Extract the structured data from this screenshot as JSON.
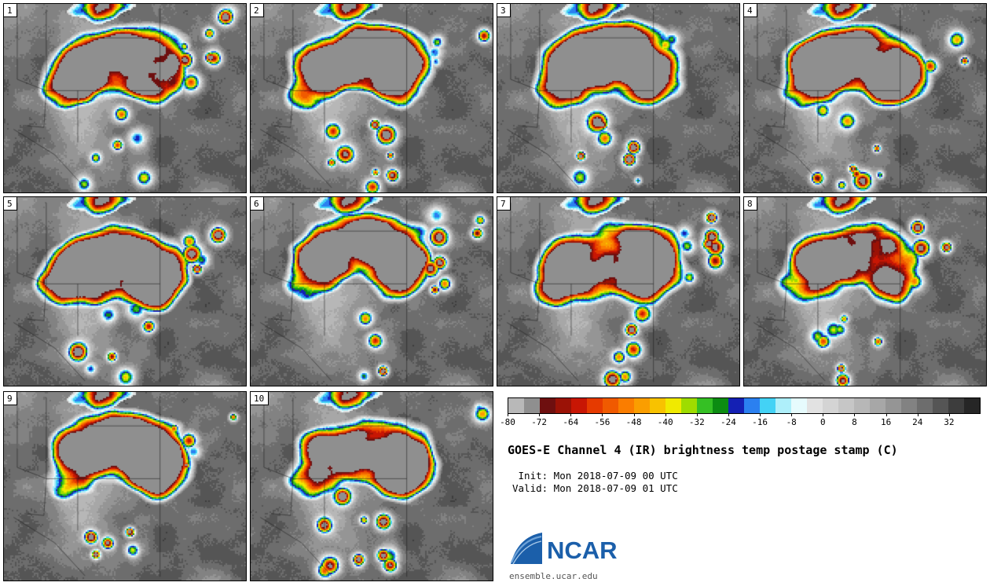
{
  "title": "GOES-E Channel 4 (IR) brightness temp postage stamp (C)",
  "init_line": " Init: Mon 2018-07-09 00 UTC",
  "valid_line": "Valid: Mon 2018-07-09 01 UTC",
  "panels": [
    {
      "label": "1"
    },
    {
      "label": "2"
    },
    {
      "label": "3"
    },
    {
      "label": "4"
    },
    {
      "label": "5"
    },
    {
      "label": "6"
    },
    {
      "label": "7"
    },
    {
      "label": "8"
    },
    {
      "label": "9"
    },
    {
      "label": "10"
    }
  ],
  "colorbar": {
    "min": -80,
    "max": 40,
    "step": 4,
    "colors": [
      "#b8b8b8",
      "#8f8f8f",
      "#6e0f0f",
      "#9b1206",
      "#c81604",
      "#e63a00",
      "#f05a00",
      "#fa7d00",
      "#fa9e00",
      "#f8c200",
      "#f0ea00",
      "#9edc00",
      "#35c024",
      "#0c8c12",
      "#1420b4",
      "#2b80f0",
      "#43d2f5",
      "#aeeffa",
      "#e6fbfd",
      "#e2e2e2",
      "#d4d4d4",
      "#c6c6c6",
      "#b7b7b7",
      "#a7a7a7",
      "#959595",
      "#828282",
      "#6d6d6d",
      "#555555",
      "#3d3d3d",
      "#262626"
    ],
    "ticks": [
      "-80",
      "-72",
      "-64",
      "-56",
      "-48",
      "-40",
      "-32",
      "-24",
      "-16",
      "-8",
      "0",
      "8",
      "16",
      "24",
      "32"
    ]
  },
  "footer": {
    "logo_text": "NCAR",
    "url": "ensemble.ucar.edu",
    "logo_color": "#1b5faa"
  },
  "chart_data": {
    "type": "heatmap",
    "title": "GOES-E Channel 4 (IR) brightness temp postage stamp (C)",
    "units": "C",
    "panel_labels": [
      "1",
      "2",
      "3",
      "4",
      "5",
      "6",
      "7",
      "8",
      "9",
      "10"
    ],
    "colorbar_ticks": [
      -80,
      -72,
      -64,
      -56,
      -48,
      -40,
      -32,
      -24,
      -16,
      -8,
      0,
      8,
      16,
      24,
      32
    ],
    "colorbar_range": [
      -80,
      40
    ],
    "init": "Mon 2018-07-09 00 UTC",
    "valid": "Mon 2018-07-09 01 UTC",
    "legend_position": "bottom-right"
  }
}
